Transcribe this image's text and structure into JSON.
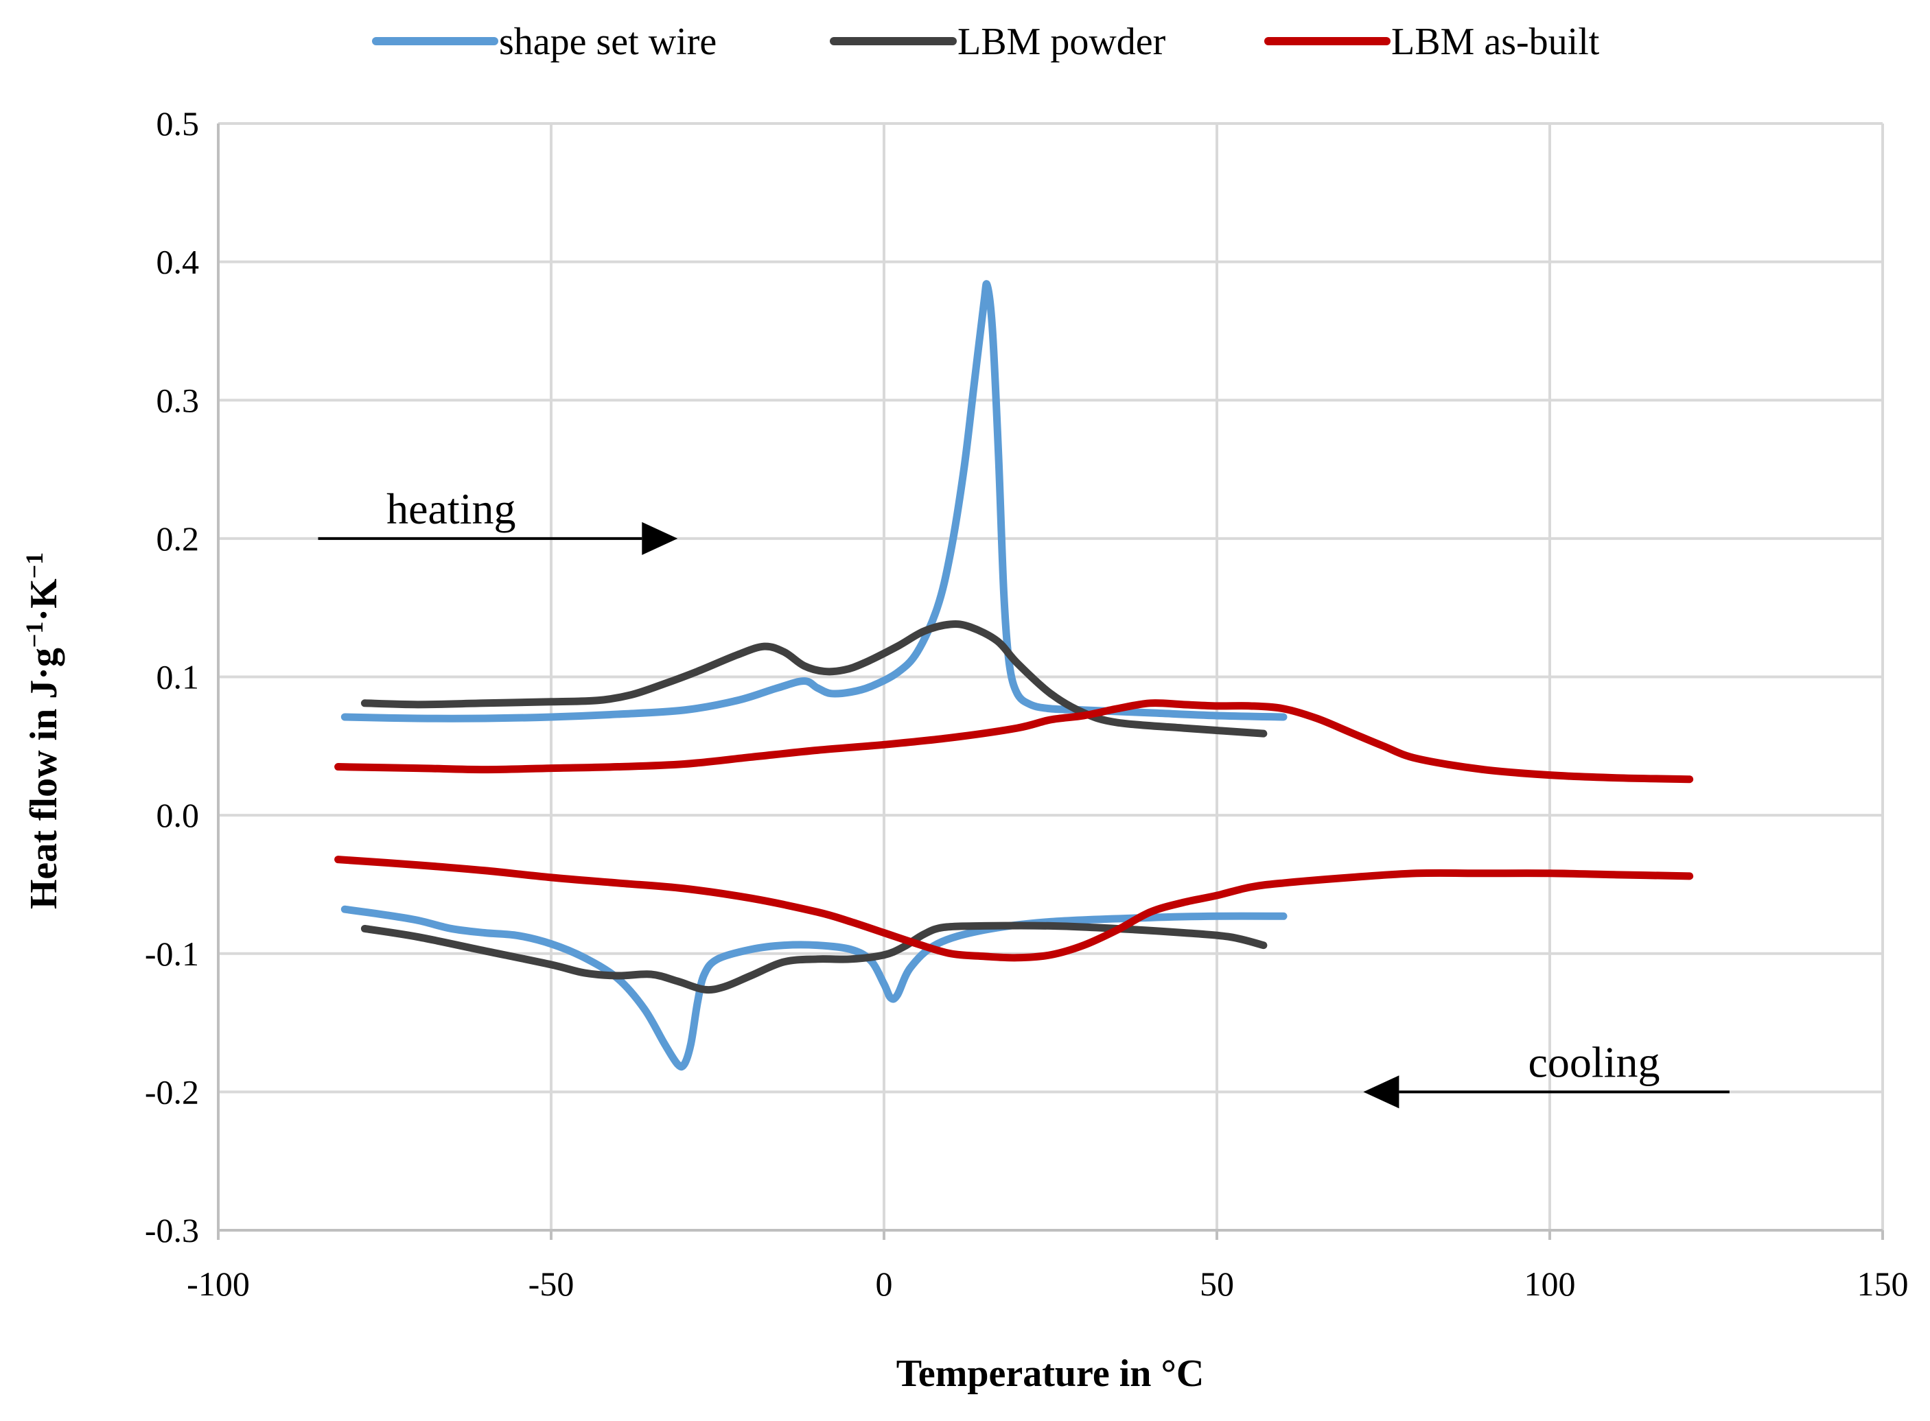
{
  "chart_data": {
    "type": "line",
    "title": "",
    "xlabel": "Temperature in °C",
    "ylabel_parts": [
      "Heat flow in J·g",
      "−1",
      "·K",
      "−1"
    ],
    "xlim": [
      -100,
      150
    ],
    "ylim": [
      -0.3,
      0.5
    ],
    "x_ticks": [
      -100,
      -50,
      0,
      50,
      100,
      150
    ],
    "x_tick_labels": [
      "-100",
      "-50",
      "0",
      "50",
      "100",
      "150"
    ],
    "y_ticks": [
      -0.3,
      -0.2,
      -0.1,
      0.0,
      0.1,
      0.2,
      0.3,
      0.4,
      0.5
    ],
    "y_tick_labels": [
      "-0.3",
      "-0.2",
      "-0.1",
      "0.0",
      "0.1",
      "0.2",
      "0.3",
      "0.4",
      "0.5"
    ],
    "grid": true,
    "legend_position": "top",
    "series": [
      {
        "name": "shape set wire",
        "color": "#5b9bd5",
        "segments": [
          [
            [
              -81,
              0.071
            ],
            [
              -70,
              0.07
            ],
            [
              -60,
              0.07
            ],
            [
              -50,
              0.071
            ],
            [
              -40,
              0.073
            ],
            [
              -30,
              0.076
            ],
            [
              -22,
              0.083
            ],
            [
              -16,
              0.092
            ],
            [
              -12,
              0.097
            ],
            [
              -10,
              0.092
            ],
            [
              -8,
              0.088
            ],
            [
              -5,
              0.089
            ],
            [
              -2,
              0.093
            ],
            [
              2,
              0.103
            ],
            [
              5,
              0.118
            ],
            [
              8,
              0.15
            ],
            [
              10,
              0.19
            ],
            [
              12,
              0.25
            ],
            [
              13.5,
              0.31
            ],
            [
              15,
              0.37
            ],
            [
              15.5,
              0.383
            ],
            [
              16.3,
              0.35
            ],
            [
              17.2,
              0.26
            ],
            [
              18,
              0.16
            ],
            [
              18.8,
              0.11
            ],
            [
              20,
              0.088
            ],
            [
              22,
              0.08
            ],
            [
              25,
              0.077
            ],
            [
              30,
              0.076
            ],
            [
              40,
              0.074
            ],
            [
              50,
              0.072
            ],
            [
              60,
              0.071
            ]
          ],
          [
            [
              -81,
              -0.068
            ],
            [
              -75,
              -0.072
            ],
            [
              -70,
              -0.076
            ],
            [
              -65,
              -0.082
            ],
            [
              -60,
              -0.085
            ],
            [
              -55,
              -0.087
            ],
            [
              -50,
              -0.093
            ],
            [
              -45,
              -0.103
            ],
            [
              -40,
              -0.118
            ],
            [
              -36,
              -0.14
            ],
            [
              -33,
              -0.165
            ],
            [
              -31,
              -0.18
            ],
            [
              -30,
              -0.18
            ],
            [
              -29,
              -0.165
            ],
            [
              -28,
              -0.135
            ],
            [
              -27,
              -0.115
            ],
            [
              -25,
              -0.104
            ],
            [
              -20,
              -0.097
            ],
            [
              -15,
              -0.094
            ],
            [
              -10,
              -0.094
            ],
            [
              -5,
              -0.097
            ],
            [
              -2,
              -0.105
            ],
            [
              0,
              -0.122
            ],
            [
              1,
              -0.132
            ],
            [
              2,
              -0.13
            ],
            [
              4,
              -0.11
            ],
            [
              8,
              -0.093
            ],
            [
              15,
              -0.083
            ],
            [
              25,
              -0.077
            ],
            [
              40,
              -0.074
            ],
            [
              50,
              -0.073
            ],
            [
              60,
              -0.073
            ]
          ]
        ]
      },
      {
        "name": "LBM powder",
        "color": "#404040",
        "segments": [
          [
            [
              -78,
              0.081
            ],
            [
              -70,
              0.08
            ],
            [
              -60,
              0.081
            ],
            [
              -50,
              0.082
            ],
            [
              -43,
              0.083
            ],
            [
              -38,
              0.087
            ],
            [
              -33,
              0.095
            ],
            [
              -28,
              0.104
            ],
            [
              -22,
              0.116
            ],
            [
              -18,
              0.122
            ],
            [
              -15,
              0.118
            ],
            [
              -12,
              0.108
            ],
            [
              -9,
              0.104
            ],
            [
              -6,
              0.105
            ],
            [
              -3,
              0.11
            ],
            [
              2,
              0.122
            ],
            [
              6,
              0.133
            ],
            [
              10,
              0.138
            ],
            [
              13,
              0.136
            ],
            [
              17,
              0.126
            ],
            [
              20,
              0.11
            ],
            [
              25,
              0.088
            ],
            [
              30,
              0.074
            ],
            [
              35,
              0.067
            ],
            [
              45,
              0.063
            ],
            [
              57,
              0.059
            ]
          ],
          [
            [
              -78,
              -0.082
            ],
            [
              -70,
              -0.088
            ],
            [
              -60,
              -0.098
            ],
            [
              -50,
              -0.108
            ],
            [
              -45,
              -0.114
            ],
            [
              -40,
              -0.116
            ],
            [
              -35,
              -0.115
            ],
            [
              -31,
              -0.12
            ],
            [
              -27,
              -0.126
            ],
            [
              -24,
              -0.124
            ],
            [
              -20,
              -0.116
            ],
            [
              -15,
              -0.106
            ],
            [
              -10,
              -0.104
            ],
            [
              -5,
              -0.104
            ],
            [
              0,
              -0.101
            ],
            [
              3,
              -0.095
            ],
            [
              6,
              -0.086
            ],
            [
              9,
              -0.081
            ],
            [
              15,
              -0.08
            ],
            [
              25,
              -0.08
            ],
            [
              35,
              -0.082
            ],
            [
              45,
              -0.085
            ],
            [
              52,
              -0.088
            ],
            [
              57,
              -0.094
            ]
          ]
        ]
      },
      {
        "name": "LBM as-built",
        "color": "#c00000",
        "segments": [
          [
            [
              -82,
              0.035
            ],
            [
              -70,
              0.034
            ],
            [
              -60,
              0.033
            ],
            [
              -50,
              0.034
            ],
            [
              -40,
              0.035
            ],
            [
              -30,
              0.037
            ],
            [
              -20,
              0.042
            ],
            [
              -10,
              0.047
            ],
            [
              0,
              0.051
            ],
            [
              10,
              0.056
            ],
            [
              20,
              0.063
            ],
            [
              25,
              0.069
            ],
            [
              30,
              0.072
            ],
            [
              35,
              0.077
            ],
            [
              40,
              0.081
            ],
            [
              45,
              0.08
            ],
            [
              50,
              0.079
            ],
            [
              55,
              0.079
            ],
            [
              60,
              0.077
            ],
            [
              65,
              0.07
            ],
            [
              70,
              0.06
            ],
            [
              75,
              0.05
            ],
            [
              80,
              0.041
            ],
            [
              90,
              0.033
            ],
            [
              100,
              0.029
            ],
            [
              110,
              0.027
            ],
            [
              121,
              0.026
            ]
          ],
          [
            [
              -82,
              -0.032
            ],
            [
              -70,
              -0.036
            ],
            [
              -60,
              -0.04
            ],
            [
              -50,
              -0.045
            ],
            [
              -40,
              -0.049
            ],
            [
              -30,
              -0.053
            ],
            [
              -20,
              -0.06
            ],
            [
              -10,
              -0.07
            ],
            [
              -5,
              -0.077
            ],
            [
              0,
              -0.085
            ],
            [
              5,
              -0.093
            ],
            [
              10,
              -0.1
            ],
            [
              15,
              -0.102
            ],
            [
              20,
              -0.103
            ],
            [
              25,
              -0.101
            ],
            [
              30,
              -0.094
            ],
            [
              35,
              -0.083
            ],
            [
              40,
              -0.07
            ],
            [
              45,
              -0.063
            ],
            [
              50,
              -0.058
            ],
            [
              55,
              -0.052
            ],
            [
              60,
              -0.049
            ],
            [
              70,
              -0.045
            ],
            [
              80,
              -0.042
            ],
            [
              90,
              -0.042
            ],
            [
              100,
              -0.042
            ],
            [
              110,
              -0.043
            ],
            [
              121,
              -0.044
            ]
          ]
        ]
      }
    ],
    "annotations": [
      {
        "label": "heating",
        "direction": "right",
        "x_from": -85,
        "x_to": -31,
        "y": 0.2
      },
      {
        "label": "cooling",
        "direction": "left",
        "x_from": 127,
        "x_to": 72,
        "y": -0.2
      }
    ]
  }
}
